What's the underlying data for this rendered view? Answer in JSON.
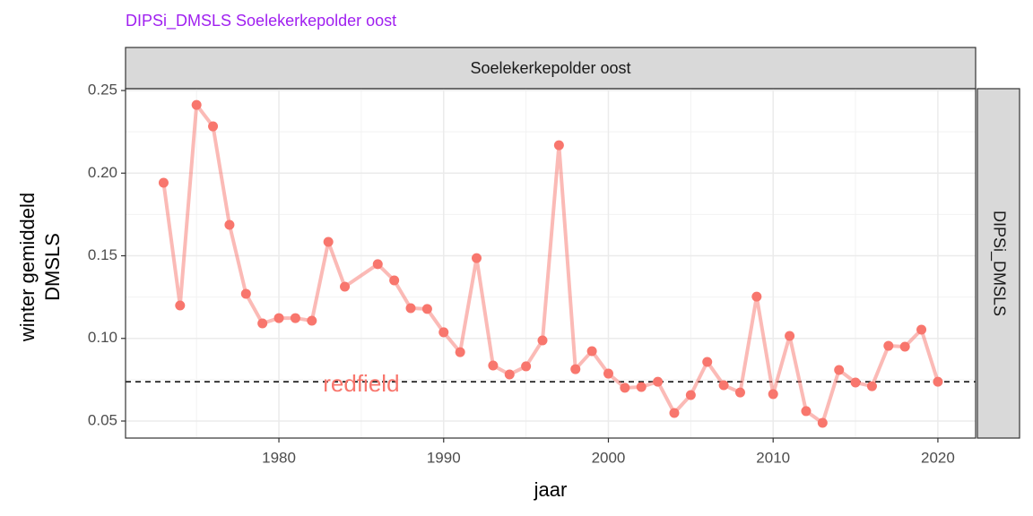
{
  "chart_data": {
    "type": "line",
    "title": "DIPSi_DMSLS Soelekerkepolder oost",
    "strip_top": "Soelekerkepolder oost",
    "strip_right": "DIPSi_DMSLS",
    "xlabel": "jaar",
    "ylabel": [
      "winter gemiddeld",
      "DMSLS"
    ],
    "series": [
      {
        "color": "#f8766d",
        "x": [
          1973,
          1974,
          1975,
          1976,
          1977,
          1978,
          1979,
          1980,
          1981,
          1982,
          1983,
          1984,
          1986,
          1987,
          1988,
          1989,
          1990,
          1991,
          1992,
          1993,
          1994,
          1995,
          1996,
          1997,
          1998,
          1999,
          2000,
          2001,
          2002,
          2003,
          2004,
          2005,
          2006,
          2007,
          2008,
          2009,
          2010,
          2011,
          2012,
          2013,
          2014,
          2015,
          2016,
          2017,
          2018,
          2019,
          2020
        ],
        "values": [
          0.1942,
          0.1199,
          0.2413,
          0.2283,
          0.1687,
          0.127,
          0.1091,
          0.1123,
          0.1123,
          0.1107,
          0.1584,
          0.1313,
          0.1449,
          0.1351,
          0.1183,
          0.1178,
          0.1037,
          0.0917,
          0.1486,
          0.0836,
          0.0782,
          0.0831,
          0.0988,
          0.2169,
          0.0814,
          0.0923,
          0.0787,
          0.0701,
          0.0706,
          0.0738,
          0.0549,
          0.0657,
          0.0858,
          0.0717,
          0.0673,
          0.1253,
          0.0663,
          0.1015,
          0.056,
          0.0489,
          0.0809,
          0.0733,
          0.0711,
          0.0955,
          0.095,
          0.1053,
          0.0738
        ]
      }
    ],
    "hline": {
      "value": 0.0738,
      "label": "redfield",
      "color": "#f8766d"
    },
    "xlim": [
      1970.69,
      2022.29
    ],
    "xticks": [
      1980,
      1990,
      2000,
      2010,
      2020
    ],
    "xminor": [
      1975,
      1985,
      1995,
      2005,
      2015
    ],
    "ylim": [
      0.0397,
      0.2511
    ],
    "yticks": [
      {
        "value": 0.05,
        "label": "0.05"
      },
      {
        "value": 0.1,
        "label": "0.10"
      },
      {
        "value": 0.15,
        "label": "0.15"
      },
      {
        "value": 0.2,
        "label": "0.20"
      },
      {
        "value": 0.25,
        "label": "0.25"
      }
    ],
    "yminor": [
      0.075,
      0.125,
      0.175,
      0.225
    ],
    "grid": true
  }
}
